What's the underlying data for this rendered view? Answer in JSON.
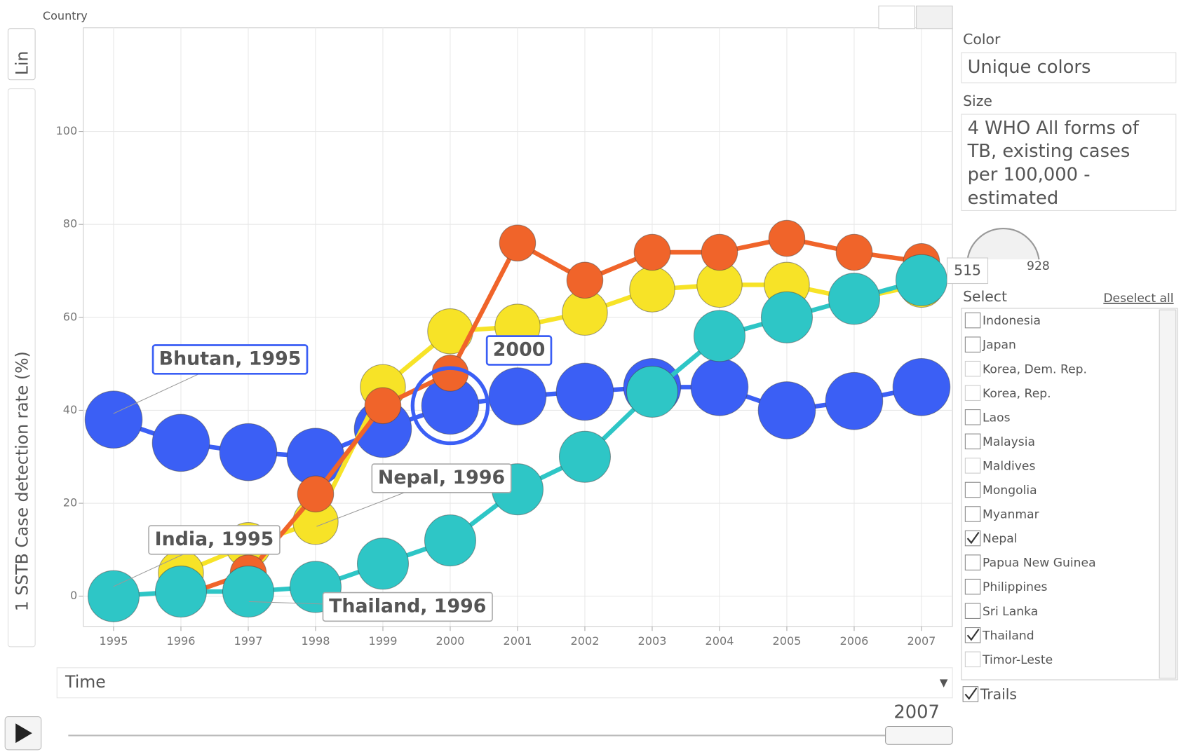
{
  "chart_data": {
    "type": "scatter",
    "x_label": "Country",
    "y_label": "1 SSTB Case detection rate (%)",
    "scale_toggle": "Lin",
    "x": [
      1995,
      1996,
      1997,
      1998,
      1999,
      2000,
      2001,
      2002,
      2003,
      2004,
      2005,
      2006,
      2007
    ],
    "xlim": [
      1994.55,
      2007.46
    ],
    "xticks": [
      1995,
      1996,
      1997,
      1998,
      1999,
      2000,
      2001,
      2002,
      2003,
      2004,
      2005,
      2006,
      2007
    ],
    "ylim": [
      -6.5,
      122.3
    ],
    "yticks": [
      0,
      20,
      40,
      60,
      80,
      100
    ],
    "grid": true,
    "series": [
      {
        "name": "Bhutan",
        "color": "#3b5ff5",
        "values": [
          38,
          33,
          31,
          30,
          36,
          41,
          43,
          44,
          45,
          45,
          40,
          42,
          45
        ]
      },
      {
        "name": "India",
        "color": "#f7e327",
        "values": [
          null,
          5,
          11,
          16,
          45,
          57,
          58,
          61,
          66,
          67,
          67,
          64,
          67
        ]
      },
      {
        "name": "Nepal",
        "color": "#f0642a",
        "values": [
          null,
          0,
          5,
          22,
          41,
          48,
          76,
          68,
          74,
          74,
          77,
          74,
          72
        ]
      },
      {
        "name": "Thailand",
        "color": "#2ec6c6",
        "values": [
          0,
          1,
          1,
          2,
          7,
          12,
          23,
          30,
          44,
          56,
          60,
          64,
          68
        ]
      }
    ],
    "annotations": [
      "Bhutan, 1995",
      "India, 1995",
      "Nepal, 1996",
      "Thailand, 1996",
      "2000"
    ],
    "controls": {
      "color_label": "Color",
      "color_value": "Unique colors",
      "size_label": "Size",
      "size_value": [
        "4 WHO All forms of",
        "TB, existing cases",
        "per 100,000 -",
        "estimated"
      ],
      "size_min": "515",
      "size_max": "928",
      "select_label": "Select",
      "deselect": "Deselect all",
      "countries": [
        {
          "name": "Indonesia",
          "checked": false,
          "enabled": true
        },
        {
          "name": "Japan",
          "checked": false,
          "enabled": true
        },
        {
          "name": "Korea, Dem. Rep.",
          "checked": false,
          "enabled": false
        },
        {
          "name": "Korea, Rep.",
          "checked": false,
          "enabled": false
        },
        {
          "name": "Laos",
          "checked": false,
          "enabled": true
        },
        {
          "name": "Malaysia",
          "checked": false,
          "enabled": true
        },
        {
          "name": "Maldives",
          "checked": false,
          "enabled": false
        },
        {
          "name": "Mongolia",
          "checked": false,
          "enabled": true
        },
        {
          "name": "Myanmar",
          "checked": false,
          "enabled": true
        },
        {
          "name": "Nepal",
          "checked": true,
          "enabled": true
        },
        {
          "name": "Papua New Guinea",
          "checked": false,
          "enabled": true
        },
        {
          "name": "Philippines",
          "checked": false,
          "enabled": true
        },
        {
          "name": "Sri Lanka",
          "checked": false,
          "enabled": true
        },
        {
          "name": "Thailand",
          "checked": true,
          "enabled": true
        },
        {
          "name": "Timor-Leste",
          "checked": false,
          "enabled": false
        }
      ],
      "trails": "Trails",
      "time_label": "Time",
      "current_year": "2007"
    }
  }
}
